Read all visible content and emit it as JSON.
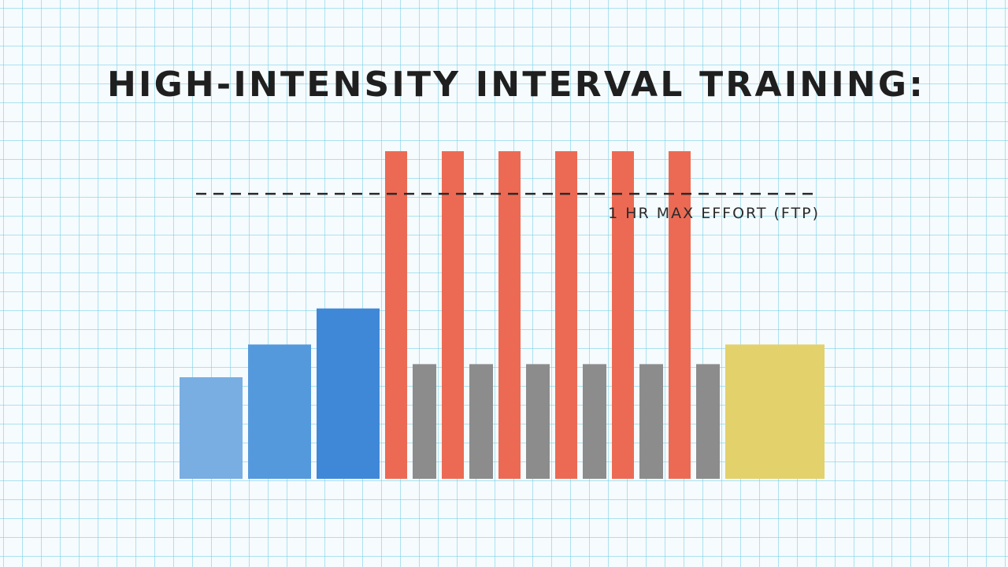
{
  "title": "HIGH-INTENSITY INTERVAL TRAINING:",
  "chart_data": {
    "type": "bar",
    "title": "HIGH-INTENSITY INTERVAL TRAINING:",
    "xlabel": "",
    "ylabel": "",
    "grid": true,
    "reference_line": {
      "label": "1 HR MAX EFFORT (FTP)",
      "value": 87,
      "style": "dashed"
    },
    "bars": [
      {
        "value": 31,
        "color": "#79aee2"
      },
      {
        "value": 41,
        "color": "#5599dd"
      },
      {
        "value": 52,
        "color": "#3f88d8"
      },
      {
        "value": 100,
        "color": "#ec6a54"
      },
      {
        "value": 35,
        "color": "#8c8c8c"
      },
      {
        "value": 100,
        "color": "#ec6a54"
      },
      {
        "value": 35,
        "color": "#8c8c8c"
      },
      {
        "value": 100,
        "color": "#ec6a54"
      },
      {
        "value": 35,
        "color": "#8c8c8c"
      },
      {
        "value": 100,
        "color": "#ec6a54"
      },
      {
        "value": 35,
        "color": "#8c8c8c"
      },
      {
        "value": 100,
        "color": "#ec6a54"
      },
      {
        "value": 35,
        "color": "#8c8c8c"
      },
      {
        "value": 100,
        "color": "#ec6a54"
      },
      {
        "value": 35,
        "color": "#8c8c8c"
      },
      {
        "value": 41,
        "color": "#e3d16c"
      }
    ],
    "ylim": [
      0,
      100
    ]
  }
}
